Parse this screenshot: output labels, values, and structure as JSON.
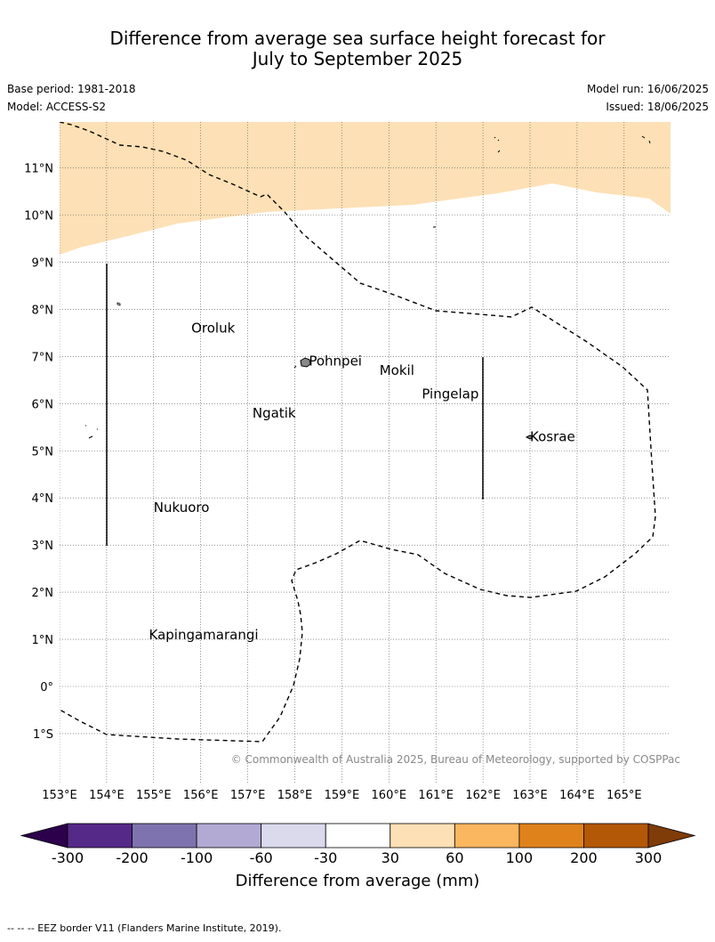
{
  "title": {
    "line1": "Difference from average sea surface height forecast for",
    "line2": "July to September 2025"
  },
  "meta": {
    "base_period": "Base period: 1981-2018",
    "model": "Model: ACCESS-S2",
    "model_run": "Model run: 16/06/2025",
    "issued": "Issued: 18/06/2025"
  },
  "map": {
    "lon_range": [
      153,
      166
    ],
    "lat_range": [
      -2,
      12
    ],
    "lon_ticks": [
      "153°E",
      "154°E",
      "155°E",
      "156°E",
      "157°E",
      "158°E",
      "159°E",
      "160°E",
      "161°E",
      "162°E",
      "163°E",
      "164°E",
      "165°E"
    ],
    "lat_ticks": [
      "11°N",
      "10°N",
      "9°N",
      "8°N",
      "7°N",
      "6°N",
      "5°N",
      "4°N",
      "3°N",
      "2°N",
      "1°N",
      "0°",
      "1°S"
    ],
    "grid": true,
    "places": [
      {
        "name": "Oroluk",
        "lon": 155.8,
        "lat": 7.6
      },
      {
        "name": "Pohnpei",
        "lon": 158.3,
        "lat": 6.9
      },
      {
        "name": "Mokil",
        "lon": 159.8,
        "lat": 6.7
      },
      {
        "name": "Pingelap",
        "lon": 160.7,
        "lat": 6.2
      },
      {
        "name": "Ngatik",
        "lon": 157.1,
        "lat": 5.8
      },
      {
        "name": "Kosrae",
        "lon": 163.0,
        "lat": 5.3
      },
      {
        "name": "Nukuoro",
        "lon": 155.0,
        "lat": 3.8
      },
      {
        "name": "Kapingamarangi",
        "lon": 154.9,
        "lat": 1.1
      }
    ],
    "anomaly_fill_color": "#fde0b5",
    "copyright": "© Commonwealth of Australia 2025, Bureau of Meteorology, supported by COSPPac"
  },
  "colorbar": {
    "ticks": [
      "-300",
      "-200",
      "-100",
      "-60",
      "-30",
      "30",
      "60",
      "100",
      "200",
      "300"
    ],
    "colors": [
      "#552988",
      "#7e73ae",
      "#b2aad3",
      "#dadaec",
      "#ffffff",
      "#fde0b5",
      "#fbb660",
      "#e0821c",
      "#b35806"
    ],
    "under_color": "#2d004b",
    "over_color": "#7f3b08",
    "label": "Difference from average (mm)"
  },
  "footer": "-- -- -- EEZ border V11 (Flanders Marine Institute, 2019)."
}
